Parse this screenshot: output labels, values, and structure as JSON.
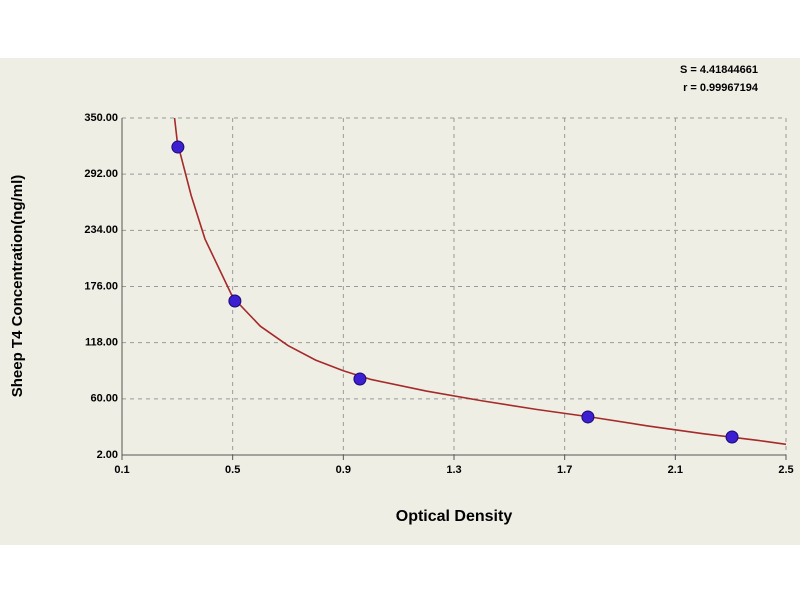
{
  "chart_data": {
    "type": "scatter",
    "annotations": [
      "S = 4.41844661",
      "r = 0.99967194"
    ],
    "x_label": "Optical Density",
    "y_label": "Sheep T4 Concentration(ng/ml)",
    "xlim": [
      0.1,
      2.5
    ],
    "xticks": [
      0.1,
      0.5,
      0.9,
      1.3,
      1.7,
      2.1,
      2.5
    ],
    "ylim": [
      2,
      350
    ],
    "yticks": [
      {
        "value": 2,
        "label": "2.00"
      },
      {
        "value": 60,
        "label": "60.00"
      },
      {
        "value": 118,
        "label": "118.00"
      },
      {
        "value": 176,
        "label": "176.00"
      },
      {
        "value": 234,
        "label": "234.00"
      },
      {
        "value": 292,
        "label": "292.00"
      },
      {
        "value": 350,
        "label": "350.00"
      }
    ],
    "grid": true,
    "series": [
      {
        "type": "scatter",
        "color": "#3b1fd0",
        "x": [
          0.302,
          0.508,
          0.96,
          1.784,
          2.305
        ],
        "values": [
          320,
          161,
          80.5,
          41.3,
          20.6
        ]
      },
      {
        "type": "line",
        "color": "#a52a2a",
        "x": [
          0.29,
          0.3,
          0.35,
          0.4,
          0.5,
          0.6,
          0.7,
          0.8,
          0.9,
          1.0,
          1.2,
          1.4,
          1.6,
          1.8,
          2.0,
          2.2,
          2.4,
          2.5
        ],
        "values": [
          350,
          325,
          270,
          225,
          165,
          135,
          115,
          100,
          89,
          80,
          68,
          58,
          49,
          41,
          32,
          24,
          17,
          13
        ]
      }
    ]
  }
}
